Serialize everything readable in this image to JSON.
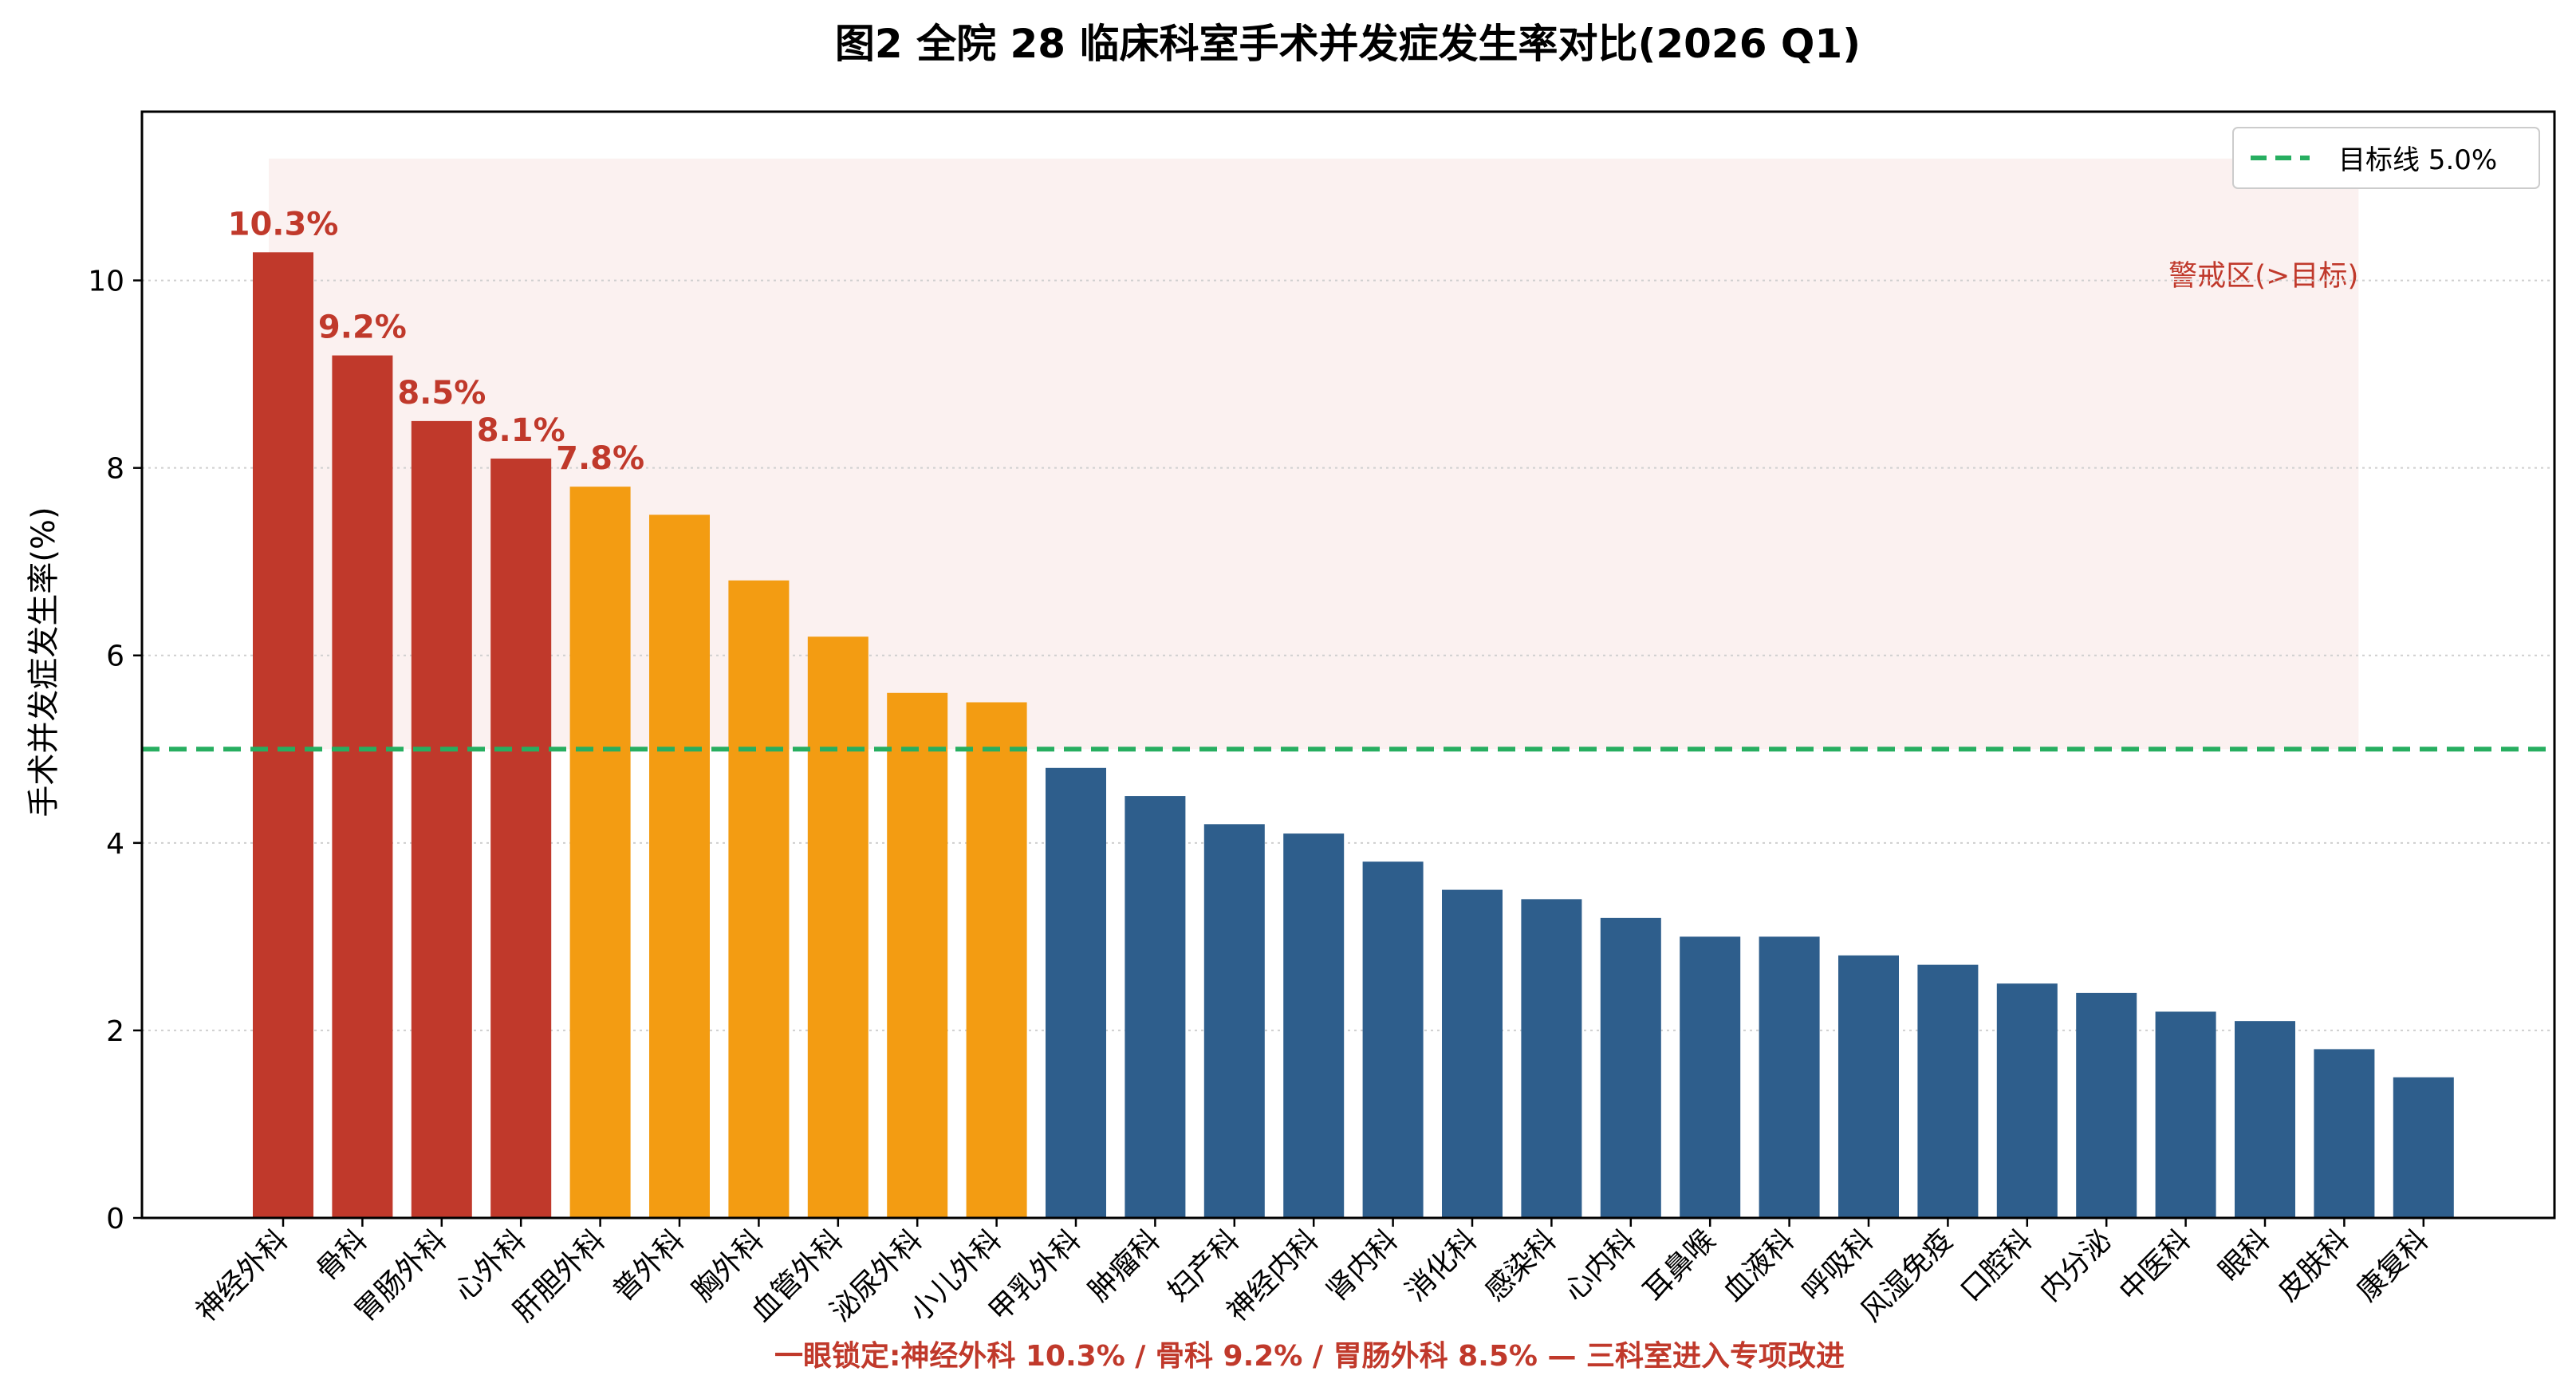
{
  "chart_data": {
    "type": "bar",
    "title": "图2 全院 28 临床科室手术并发症发生率对比(2026 Q1)",
    "ylabel": "手术并发症发生率(%)",
    "xlabel": "",
    "ylim": [
      0,
      11.8
    ],
    "yticks": [
      0,
      2,
      4,
      6,
      8,
      10
    ],
    "grid": "y-dotted",
    "legend_position": "top-right",
    "categories": [
      "神经外科",
      "骨科",
      "胃肠外科",
      "心外科",
      "肝胆外科",
      "普外科",
      "胸外科",
      "血管外科",
      "泌尿外科",
      "小儿外科",
      "甲乳外科",
      "肿瘤科",
      "妇产科",
      "神经内科",
      "肾内科",
      "消化科",
      "感染科",
      "心内科",
      "耳鼻喉",
      "血液科",
      "呼吸科",
      "风湿免疫",
      "口腔科",
      "内分泌",
      "中医科",
      "眼科",
      "皮肤科",
      "康复科"
    ],
    "values": [
      10.3,
      9.2,
      8.5,
      8.1,
      7.8,
      7.5,
      6.8,
      6.2,
      5.6,
      5.5,
      4.8,
      4.5,
      4.2,
      4.1,
      3.8,
      3.5,
      3.4,
      3.2,
      3.0,
      3.0,
      2.8,
      2.7,
      2.5,
      2.4,
      2.2,
      2.1,
      1.8,
      1.5
    ],
    "bar_colors": [
      "#c0392b",
      "#c0392b",
      "#c0392b",
      "#c0392b",
      "#f39c12",
      "#f39c12",
      "#f39c12",
      "#f39c12",
      "#f39c12",
      "#f39c12",
      "#2e5e8c",
      "#2e5e8c",
      "#2e5e8c",
      "#2e5e8c",
      "#2e5e8c",
      "#2e5e8c",
      "#2e5e8c",
      "#2e5e8c",
      "#2e5e8c",
      "#2e5e8c",
      "#2e5e8c",
      "#2e5e8c",
      "#2e5e8c",
      "#2e5e8c",
      "#2e5e8c",
      "#2e5e8c",
      "#2e5e8c",
      "#2e5e8c"
    ],
    "data_labels": [
      {
        "index": 0,
        "text": "10.3%"
      },
      {
        "index": 1,
        "text": "9.2%"
      },
      {
        "index": 2,
        "text": "8.5%"
      },
      {
        "index": 3,
        "text": "8.1%"
      },
      {
        "index": 4,
        "text": "7.8%"
      }
    ],
    "target_line": {
      "value": 5.0,
      "label": "目标线 5.0%",
      "color": "#27ae60"
    },
    "warning_zone": {
      "y_from": 5.0,
      "y_to": 11.3,
      "label": "警戒区(>目标)",
      "color": "#c0392b"
    },
    "footnote": "一眼锁定:神经外科 10.3% / 骨科 9.2% / 胃肠外科 8.5% — 三科室进入专项改进",
    "accent_color": "#c0392b"
  }
}
